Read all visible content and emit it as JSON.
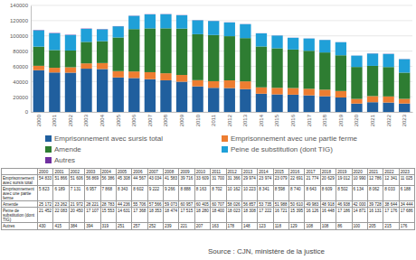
{
  "chart_data": {
    "type": "bar",
    "stacked": true,
    "grid": true,
    "legend": "bottom",
    "categories": [
      "2000",
      "2001",
      "2002",
      "2003",
      "2004",
      "2005",
      "2006",
      "2007",
      "2008",
      "2009",
      "2010",
      "2011",
      "2012",
      "2013",
      "2014",
      "2015",
      "2016",
      "2017",
      "2018",
      "2019",
      "2020",
      "2021",
      "2022",
      "2023"
    ],
    "ylim": [
      0,
      140000
    ],
    "yticks": [
      0,
      20000,
      40000,
      60000,
      80000,
      100000,
      120000,
      140000
    ],
    "series": [
      {
        "name": "Emprisonnement avec sursis total",
        "color": "#205f9e",
        "values": [
          54833,
          51866,
          51606,
          56869,
          56386,
          45308,
          44567,
          43034,
          41583,
          39716,
          33609,
          31700,
          31366,
          29974,
          23974,
          23079,
          22691,
          21774,
          20629,
          19012,
          10990,
          12786,
          12341,
          11025
        ]
      },
      {
        "name": "Emprisonnement avec une partie ferme",
        "color": "#ed7d31",
        "values": [
          5823,
          6189,
          7131,
          6957,
          7868,
          8343,
          8602,
          9222,
          9266,
          8888,
          8163,
          8702,
          10162,
          10223,
          8341,
          8598,
          8740,
          8643,
          8609,
          8502,
          6134,
          8062,
          8033,
          6188
        ]
      },
      {
        "name": "Amende",
        "color": "#2e7d32",
        "values": [
          25172,
          23262,
          21972,
          28221,
          28783,
          44236,
          55706,
          57566,
          59073,
          60957,
          60405,
          60707,
          58026,
          56857,
          53735,
          51988,
          50610,
          49983,
          48918,
          46938,
          42000,
          39728,
          38644,
          34444
        ]
      },
      {
        "name": "Peine de substitution (dont TIG)",
        "color": "#1fa0d8",
        "values": [
          21452,
          22083,
          20450,
          17107,
          15553,
          14631,
          17368,
          18353,
          18474,
          17515,
          18280,
          18400,
          18023,
          18308,
          17222,
          16721,
          15395,
          16126,
          16448,
          17186,
          14871,
          16131,
          17176,
          17686
        ]
      },
      {
        "name": "Autres",
        "color": "#7030a0",
        "values": [
          430,
          415,
          384,
          394,
          319,
          251,
          257,
          252,
          239,
          221,
          207,
          163,
          178,
          148,
          123,
          118,
          129,
          108,
          108,
          86,
          100,
          205,
          215,
          176
        ]
      }
    ]
  },
  "table": {
    "header": [
      "2000",
      "2001",
      "2002",
      "2003",
      "2004",
      "2005",
      "2006",
      "2007",
      "2008",
      "2009",
      "2010",
      "2011",
      "2012",
      "2013",
      "2014",
      "2015",
      "2016",
      "2017",
      "2018",
      "2019",
      "2020",
      "2021",
      "2022",
      "2023"
    ],
    "rows": [
      {
        "label": "Emprisonnement avec sursis total",
        "cells": [
          "54 833",
          "51 866",
          "51 606",
          "56 869",
          "56 386",
          "45 308",
          "44 567",
          "43 034",
          "41 583",
          "39 716",
          "33 609",
          "31 700",
          "31 366",
          "29 974",
          "23 974",
          "23 079",
          "22 691",
          "21 774",
          "20 629",
          "19 012",
          "10 990",
          "12 786",
          "12 341",
          "11 025"
        ]
      },
      {
        "label": "Emprisonnement avec une partie ferme",
        "cells": [
          "5 823",
          "6 189",
          "7 131",
          "6 957",
          "7 868",
          "8 343",
          "8 602",
          "9 222",
          "9 266",
          "8 888",
          "8 163",
          "8 702",
          "10 162",
          "10 223",
          "8 341",
          "8 598",
          "8 740",
          "8 643",
          "8 609",
          "8 502",
          "6 134",
          "8 062",
          "8 033",
          "6 188"
        ]
      },
      {
        "label": "Amende",
        "cells": [
          "25 172",
          "23 262",
          "21 972",
          "28 221",
          "28 783",
          "44 236",
          "55 706",
          "57 566",
          "59 073",
          "60 957",
          "60 405",
          "60 707",
          "58 026",
          "56 857",
          "53 735",
          "51 988",
          "50 610",
          "49 983",
          "48 918",
          "46 938",
          "42 000",
          "39 728",
          "38 644",
          "34 444"
        ]
      },
      {
        "label": "Peine de substitution (dont TIG)",
        "cells": [
          "21 452",
          "22 083",
          "20 450",
          "17 107",
          "15 553",
          "14 631",
          "17 368",
          "18 353",
          "18 474",
          "17 515",
          "18 280",
          "18 400",
          "18 023",
          "18 308",
          "17 222",
          "16 721",
          "15 395",
          "16 126",
          "16 448",
          "17 186",
          "14 871",
          "16 131",
          "17 176",
          "17 686"
        ]
      },
      {
        "label": "Autres",
        "cells": [
          "430",
          "415",
          "384",
          "394",
          "319",
          "251",
          "257",
          "252",
          "239",
          "221",
          "207",
          "163",
          "178",
          "148",
          "123",
          "118",
          "129",
          "108",
          "108",
          "86",
          "100",
          "205",
          "215",
          "176"
        ]
      }
    ]
  },
  "source": "Source : CJN, ministère de la justice"
}
